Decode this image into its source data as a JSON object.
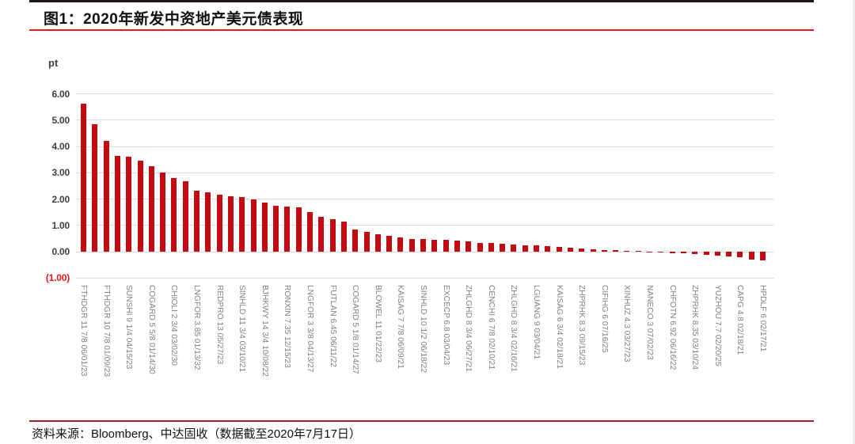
{
  "header": {
    "title": "图1：2020年新发中资地产美元债表现"
  },
  "footer": {
    "source": "资料来源：Bloomberg、中达固收（数据截至2020年7月17日）"
  },
  "colors": {
    "bar": "#c20b10",
    "title_underline": "#e8191c",
    "footer_rule": "#9c2125",
    "top_rule": "#241414",
    "gridline": "#dcdcdc",
    "ytick_text": "#404040",
    "ytick_negative_text": "#e8191c",
    "xtick_text": "#7f7f7f"
  },
  "chart_data": {
    "type": "bar",
    "title": "图1：2020年新发中资地产美元债表现",
    "xlabel": "",
    "ylabel": "pt",
    "ylim": [
      -1,
      6
    ],
    "grid": true,
    "legend": false,
    "yticks": [
      {
        "label": "6.00",
        "value": 6
      },
      {
        "label": "5.00",
        "value": 5
      },
      {
        "label": "4.00",
        "value": 4
      },
      {
        "label": "3.00",
        "value": 3
      },
      {
        "label": "2.00",
        "value": 2
      },
      {
        "label": "1.00",
        "value": 1
      },
      {
        "label": "0.00",
        "value": 0
      },
      {
        "label": "(1.00)",
        "value": -1
      }
    ],
    "note": "61 bars sorted descending; only every 2nd bar carries an x-axis label (empty label = unlabeled bar)",
    "bars": [
      {
        "label": "FTHDGR 11 7/8 06/01/23",
        "value": 5.63
      },
      {
        "label": "",
        "value": 4.84
      },
      {
        "label": "FTHDGR 10 7/8 01/09/23",
        "value": 4.22
      },
      {
        "label": "",
        "value": 3.65
      },
      {
        "label": "SUNSHI 9 1/4 04/15/23",
        "value": 3.62
      },
      {
        "label": "",
        "value": 3.47
      },
      {
        "label": "COGARD 5 5/8 01/14/30",
        "value": 3.25
      },
      {
        "label": "",
        "value": 3.0
      },
      {
        "label": "CHIOLI 2 3/4 03/02/30",
        "value": 2.81
      },
      {
        "label": "",
        "value": 2.69
      },
      {
        "label": "LNGFOR 3.85 01/13/32",
        "value": 2.31
      },
      {
        "label": "",
        "value": 2.27
      },
      {
        "label": "REDPRO 13 05/27/23",
        "value": 2.17
      },
      {
        "label": "",
        "value": 2.12
      },
      {
        "label": "SINHLD 11 3/4 03/10/21",
        "value": 2.07
      },
      {
        "label": "",
        "value": 1.97
      },
      {
        "label": "BJHKWY 14 3/4 10/08/22",
        "value": 1.85
      },
      {
        "label": "",
        "value": 1.75
      },
      {
        "label": "RONXIN 7.35 12/15/23",
        "value": 1.7
      },
      {
        "label": "",
        "value": 1.67
      },
      {
        "label": "LNGFOR 3 3/8 04/13/27",
        "value": 1.5
      },
      {
        "label": "",
        "value": 1.31
      },
      {
        "label": "FUTLAN 6.45 06/11/22",
        "value": 1.22
      },
      {
        "label": "",
        "value": 1.14
      },
      {
        "label": "COGARD 5 1/8 01/14/27",
        "value": 0.85
      },
      {
        "label": "",
        "value": 0.75
      },
      {
        "label": "BLOWEL 11 01/22/23",
        "value": 0.65
      },
      {
        "label": "",
        "value": 0.6
      },
      {
        "label": "KAISAG 7 7/8 06/09/21",
        "value": 0.53
      },
      {
        "label": "",
        "value": 0.49
      },
      {
        "label": "SINHLD 10 1/2 06/18/22",
        "value": 0.48
      },
      {
        "label": "",
        "value": 0.46
      },
      {
        "label": "EXCECP 6.8 03/04/23",
        "value": 0.44
      },
      {
        "label": "",
        "value": 0.42
      },
      {
        "label": "ZHLGHD 8 3/4 06/27/21",
        "value": 0.4
      },
      {
        "label": "",
        "value": 0.34
      },
      {
        "label": "CENCHI 6 7/8 02/10/21",
        "value": 0.32
      },
      {
        "label": "",
        "value": 0.3
      },
      {
        "label": "ZHLGHD 8 3/4 02/16/21",
        "value": 0.28
      },
      {
        "label": "",
        "value": 0.25
      },
      {
        "label": "LGUANG 9 03/04/21",
        "value": 0.23
      },
      {
        "label": "",
        "value": 0.2
      },
      {
        "label": "KAISAG 6 3/4 02/18/21",
        "value": 0.17
      },
      {
        "label": "",
        "value": 0.14
      },
      {
        "label": "ZHPRHK 8.3 09/15/23",
        "value": 0.12
      },
      {
        "label": "",
        "value": 0.1
      },
      {
        "label": "CIFIHG 6 07/16/25",
        "value": 0.07
      },
      {
        "label": "",
        "value": 0.05
      },
      {
        "label": "XINHUZ 4.3 03/27/23",
        "value": 0.04
      },
      {
        "label": "",
        "value": 0.02
      },
      {
        "label": "NANECO 3 07/02/23",
        "value": 0.01
      },
      {
        "label": "",
        "value": -0.02
      },
      {
        "label": "CHFOTN 6.92 06/16/22",
        "value": -0.05
      },
      {
        "label": "",
        "value": -0.07
      },
      {
        "label": "ZHPRHK 8.35 03/10/24",
        "value": -0.09
      },
      {
        "label": "",
        "value": -0.11
      },
      {
        "label": "YUZHOU 7.7 02/20/25",
        "value": -0.16
      },
      {
        "label": "",
        "value": -0.19
      },
      {
        "label": "CAPG 4.8 02/18/21",
        "value": -0.2
      },
      {
        "label": "",
        "value": -0.29
      },
      {
        "label": "HPDLF 6 02/17/21",
        "value": -0.34
      }
    ]
  }
}
